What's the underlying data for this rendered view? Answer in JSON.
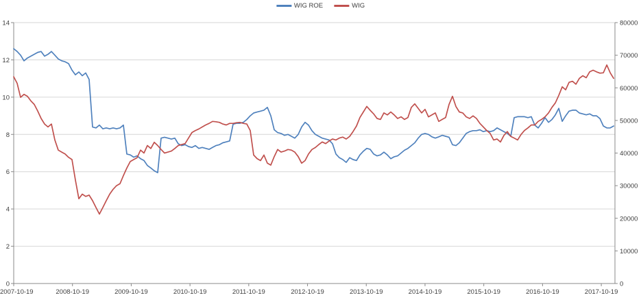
{
  "chart_data": {
    "type": "line",
    "title": "",
    "legend_position": "top-center",
    "grid": "horizontal",
    "colors": {
      "wig_roe_line": "#4F81BD",
      "wig_line": "#C0504D",
      "gridline": "#d6d6d6",
      "axis_line": "#898989",
      "tick_text": "#404040"
    },
    "axes": {
      "left": {
        "min": 0,
        "max": 14,
        "ticks": [
          0,
          2,
          4,
          6,
          8,
          10,
          12,
          14
        ]
      },
      "right": {
        "min": 0,
        "max": 80000,
        "ticks": [
          0,
          10000,
          20000,
          30000,
          40000,
          50000,
          60000,
          70000,
          80000
        ]
      },
      "x": {
        "tick_labels": [
          "2007-10-19",
          "2008-10-19",
          "2009-10-19",
          "2010-10-19",
          "2011-10-19",
          "2012-10-19",
          "2013-10-19",
          "2014-10-19",
          "2015-10-19",
          "2016-10-19",
          "2017-10-19"
        ],
        "unit": "years since 2007-10-19",
        "span_years": 10.21
      }
    },
    "sampling": {
      "x_start_year": 0,
      "x_step_year": 0.05834
    },
    "series": [
      {
        "name": "WIG ROE",
        "axis": "left",
        "color": "#4F81BD",
        "values": [
          12.6,
          12.45,
          12.25,
          11.95,
          12.1,
          12.2,
          12.3,
          12.4,
          12.45,
          12.2,
          12.3,
          12.45,
          12.25,
          12.05,
          11.95,
          11.9,
          11.8,
          11.45,
          11.2,
          11.35,
          11.15,
          11.3,
          10.95,
          8.4,
          8.35,
          8.5,
          8.3,
          8.35,
          8.3,
          8.35,
          8.3,
          8.35,
          8.5,
          6.95,
          6.9,
          6.78,
          6.85,
          6.7,
          6.6,
          6.33,
          6.2,
          6.05,
          5.95,
          7.8,
          7.85,
          7.8,
          7.75,
          7.8,
          7.5,
          7.4,
          7.45,
          7.35,
          7.3,
          7.4,
          7.25,
          7.3,
          7.25,
          7.2,
          7.3,
          7.4,
          7.45,
          7.55,
          7.6,
          7.65,
          8.55,
          8.6,
          8.6,
          8.65,
          8.8,
          9.0,
          9.15,
          9.2,
          9.25,
          9.3,
          9.45,
          9.0,
          8.25,
          8.1,
          8.05,
          7.95,
          8.0,
          7.9,
          7.8,
          8.0,
          8.4,
          8.65,
          8.5,
          8.2,
          8.0,
          7.9,
          7.8,
          7.75,
          7.7,
          7.5,
          6.95,
          6.75,
          6.65,
          6.5,
          6.75,
          6.65,
          6.6,
          6.9,
          7.1,
          7.25,
          7.2,
          6.95,
          6.85,
          6.9,
          7.05,
          6.9,
          6.7,
          6.8,
          6.85,
          7.0,
          7.15,
          7.25,
          7.4,
          7.55,
          7.8,
          8.0,
          8.05,
          8.0,
          7.87,
          7.8,
          7.87,
          7.95,
          7.9,
          7.85,
          7.45,
          7.4,
          7.55,
          7.8,
          8.05,
          8.15,
          8.2,
          8.2,
          8.25,
          8.15,
          8.2,
          8.15,
          8.2,
          8.35,
          8.25,
          8.15,
          8.05,
          7.9,
          8.9,
          8.95,
          8.95,
          8.95,
          8.9,
          8.95,
          8.5,
          8.35,
          8.6,
          8.9,
          8.65,
          8.8,
          9.05,
          9.4,
          8.7,
          9.0,
          9.25,
          9.3,
          9.3,
          9.15,
          9.1,
          9.05,
          9.1,
          9.0,
          9.0,
          8.85,
          8.45,
          8.35,
          8.35,
          8.45
        ]
      },
      {
        "name": "WIG",
        "axis": "right",
        "color": "#C0504D",
        "values": [
          63400,
          61400,
          57100,
          58000,
          57400,
          56000,
          54900,
          52900,
          50600,
          48900,
          48000,
          48900,
          44000,
          40900,
          40300,
          39700,
          38700,
          38000,
          31700,
          26000,
          27400,
          26700,
          27100,
          25400,
          23300,
          21300,
          23300,
          25400,
          27400,
          28900,
          30000,
          30600,
          33100,
          35400,
          37400,
          38000,
          38600,
          40900,
          40000,
          42300,
          41400,
          43300,
          42300,
          41100,
          40000,
          40300,
          40600,
          41400,
          42300,
          42600,
          42900,
          44600,
          46300,
          46900,
          47400,
          48000,
          48600,
          49100,
          49700,
          49600,
          49400,
          48900,
          48600,
          49100,
          49100,
          49300,
          49400,
          49100,
          48900,
          46900,
          39400,
          38300,
          37700,
          39400,
          36900,
          36300,
          38900,
          41100,
          40300,
          40600,
          41100,
          40900,
          40300,
          38900,
          36900,
          37700,
          39700,
          41100,
          41700,
          42600,
          43400,
          42900,
          43700,
          44300,
          44000,
          44600,
          44900,
          44300,
          45100,
          46600,
          48300,
          50900,
          52600,
          54300,
          53100,
          52000,
          50600,
          50300,
          52300,
          51700,
          52600,
          51700,
          50600,
          51100,
          50300,
          50900,
          54000,
          55100,
          53700,
          52300,
          53400,
          51100,
          51700,
          52300,
          49700,
          50300,
          50900,
          54900,
          57400,
          54300,
          52600,
          52300,
          51100,
          50600,
          51400,
          50600,
          49100,
          48000,
          46900,
          46000,
          44000,
          44300,
          43400,
          45400,
          46600,
          45100,
          44600,
          44000,
          45700,
          46900,
          47700,
          48600,
          48600,
          49700,
          50300,
          51100,
          52300,
          54000,
          55400,
          57700,
          60300,
          59400,
          61700,
          62000,
          61100,
          62900,
          63700,
          63100,
          64900,
          65400,
          64900,
          64500,
          64600,
          67000,
          64600,
          62900
        ]
      }
    ]
  }
}
